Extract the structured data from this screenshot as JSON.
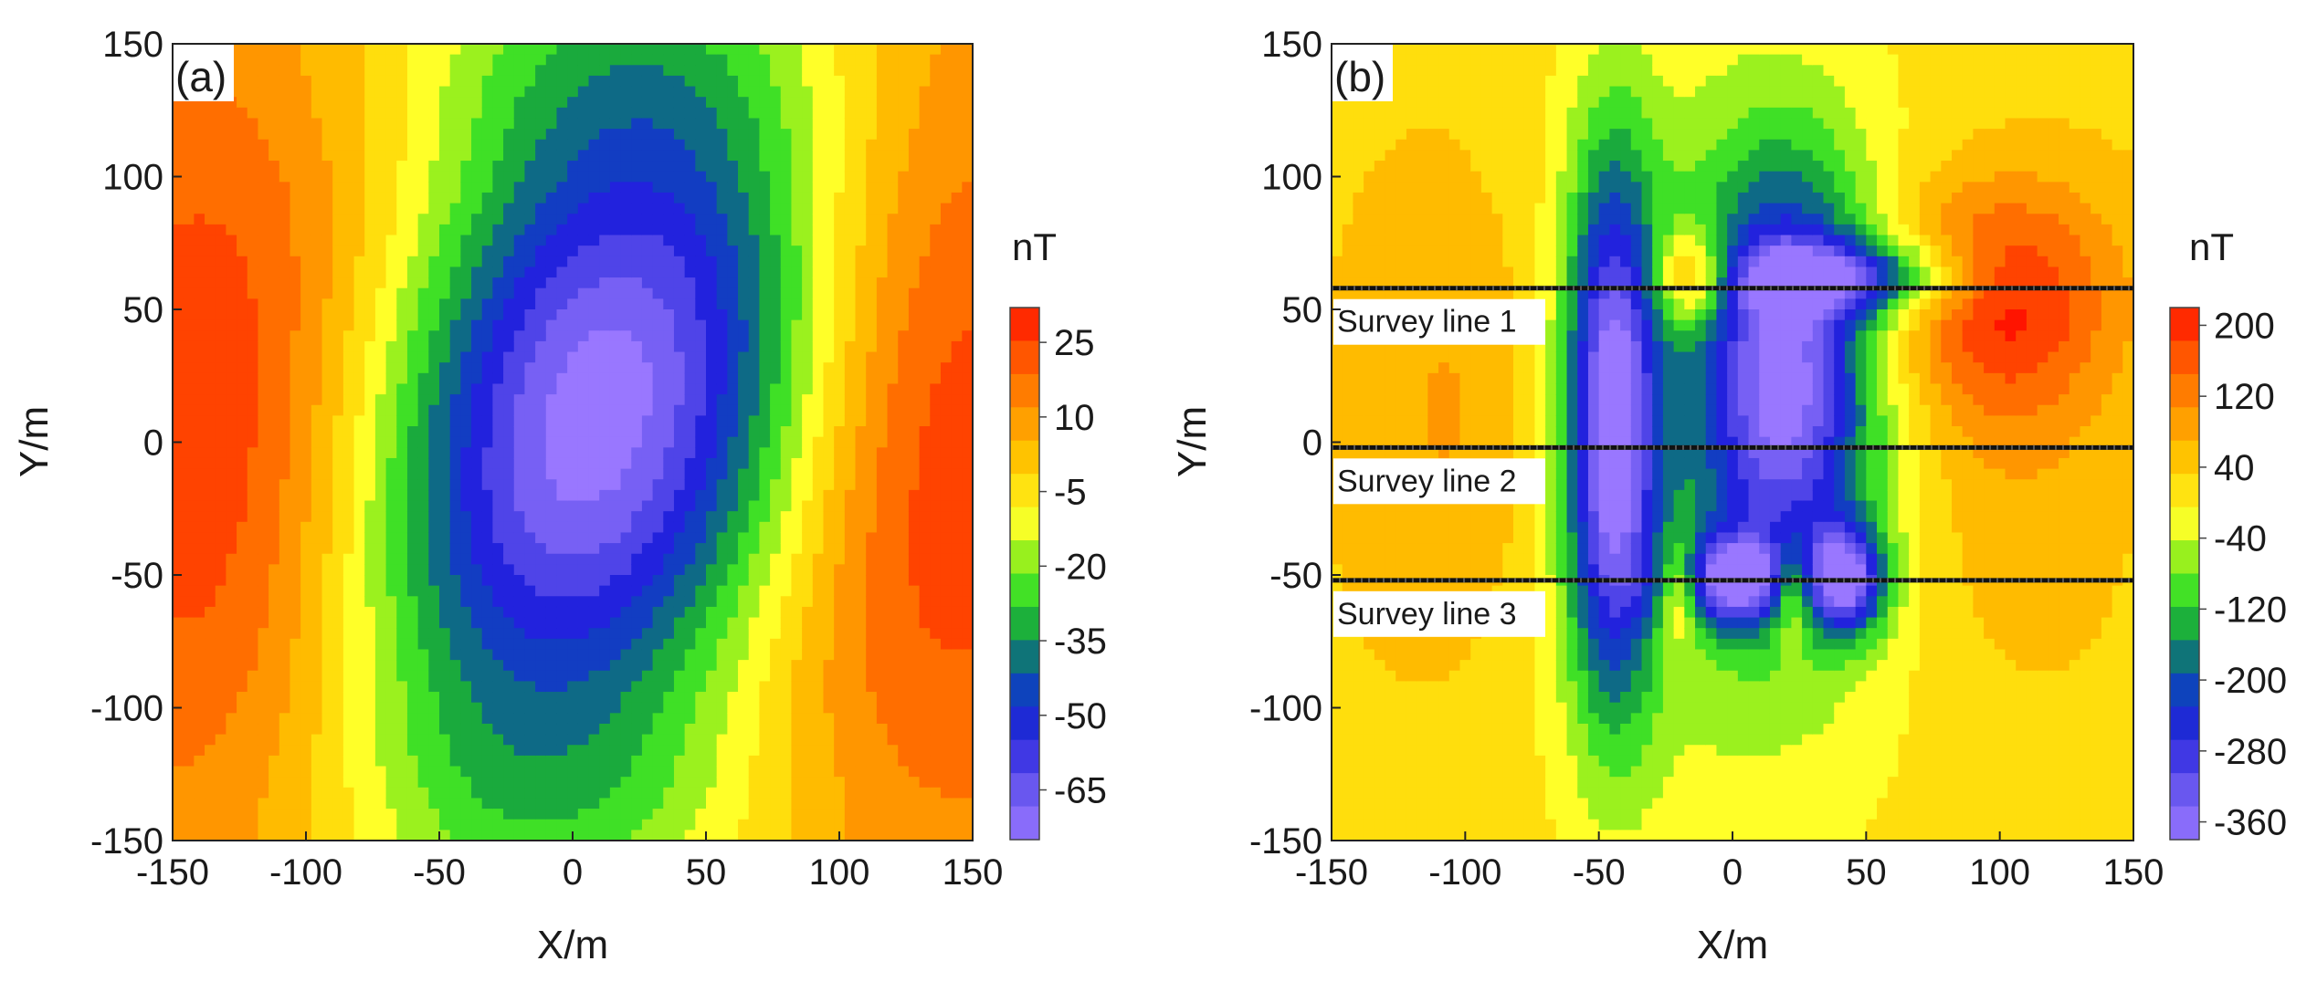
{
  "chart_data": [
    {
      "type": "heatmap",
      "panel_label": "(a)",
      "xlabel": "X/m",
      "ylabel": "Y/m",
      "xlim": [
        -150,
        150
      ],
      "ylim": [
        -150,
        150
      ],
      "xticks": [
        -150,
        -100,
        -50,
        0,
        50,
        100,
        150
      ],
      "yticks": [
        -150,
        -100,
        -50,
        0,
        50,
        100,
        150
      ],
      "colorbar": {
        "unit": "nT",
        "range": [
          -75,
          32
        ],
        "tick_values": [
          25,
          10,
          -5,
          -20,
          -35,
          -50,
          -65
        ],
        "tick_labels": [
          "25",
          "10",
          "-5",
          "-20",
          "-35",
          "-50",
          "-65"
        ]
      },
      "field": {
        "background": 3,
        "features": [
          {
            "x": 10,
            "y": 10,
            "sx": 55,
            "sy": 95,
            "amp": -80,
            "rot": 0.3
          },
          {
            "x": -135,
            "y": 0,
            "sx": 45,
            "sy": 110,
            "amp": 26,
            "rot": 0
          },
          {
            "x": 135,
            "y": 0,
            "sx": 45,
            "sy": 110,
            "amp": 26,
            "rot": 0
          },
          {
            "x": 0,
            "y": 145,
            "sx": 60,
            "sy": 30,
            "amp": -12,
            "rot": 0
          },
          {
            "x": 0,
            "y": -140,
            "sx": 60,
            "sy": 30,
            "amp": -12,
            "rot": 0
          }
        ]
      }
    },
    {
      "type": "heatmap",
      "panel_label": "(b)",
      "xlabel": "X/m",
      "ylabel": "Y/m",
      "xlim": [
        -150,
        150
      ],
      "ylim": [
        -150,
        150
      ],
      "xticks": [
        -150,
        -100,
        -50,
        0,
        50,
        100,
        150
      ],
      "yticks": [
        -150,
        -100,
        -50,
        0,
        50,
        100,
        150
      ],
      "colorbar": {
        "unit": "nT",
        "range": [
          -380,
          220
        ],
        "tick_values": [
          200,
          120,
          40,
          -40,
          -120,
          -200,
          -280,
          -360
        ],
        "tick_labels": [
          "200",
          "120",
          "40",
          "-40",
          "-120",
          "-200",
          "-280",
          "-360"
        ]
      },
      "field": {
        "background": 30,
        "features": [
          {
            "x": -45,
            "y": 5,
            "sx": 12,
            "sy": 70,
            "amp": -380,
            "rot": 0
          },
          {
            "x": 20,
            "y": 25,
            "sx": 22,
            "sy": 55,
            "amp": -330,
            "rot": 0
          },
          {
            "x": 45,
            "y": 62,
            "sx": 30,
            "sy": 10,
            "amp": -230,
            "rot": 0
          },
          {
            "x": 0,
            "y": -52,
            "sx": 18,
            "sy": 12,
            "amp": -300,
            "rot": 0
          },
          {
            "x": 43,
            "y": -52,
            "sx": 10,
            "sy": 14,
            "amp": -320,
            "rot": 0
          },
          {
            "x": -15,
            "y": 62,
            "sx": 10,
            "sy": 12,
            "amp": 200,
            "rot": 0
          },
          {
            "x": -20,
            "y": -55,
            "sx": 6,
            "sy": 14,
            "amp": 210,
            "rot": 0
          },
          {
            "x": 22,
            "y": -55,
            "sx": 6,
            "sy": 14,
            "amp": 210,
            "rot": 0
          },
          {
            "x": 100,
            "y": 55,
            "sx": 30,
            "sy": 30,
            "amp": 170,
            "rot": 0
          },
          {
            "x": -100,
            "y": 10,
            "sx": 30,
            "sy": 70,
            "amp": 80,
            "rot": 0
          },
          {
            "x": 100,
            "y": -5,
            "sx": 30,
            "sy": 60,
            "amp": 60,
            "rot": 0
          },
          {
            "x": -5,
            "y": 0,
            "sx": 60,
            "sy": 110,
            "amp": -110,
            "rot": 0
          }
        ]
      },
      "survey_lines": [
        {
          "name": "Survey line 1",
          "y": 58
        },
        {
          "name": "Survey line 2",
          "y": -2
        },
        {
          "name": "Survey line 3",
          "y": -52
        }
      ]
    }
  ]
}
